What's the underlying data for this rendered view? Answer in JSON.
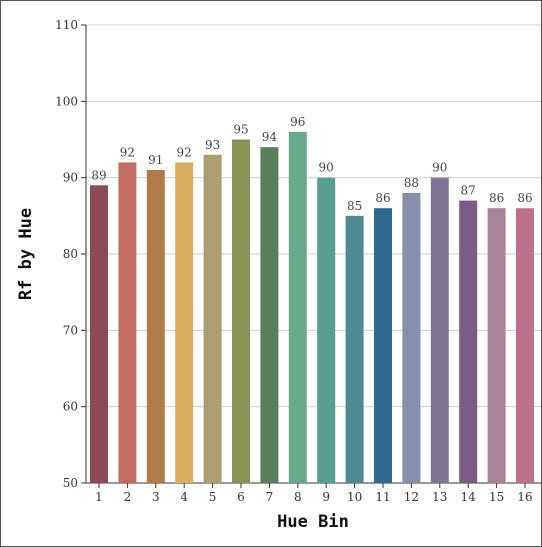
{
  "chart_data": {
    "type": "bar",
    "title": "",
    "xlabel": "Hue Bin",
    "ylabel": "Rf by Hue",
    "ylim": [
      50,
      110
    ],
    "yticks": [
      "50",
      "60",
      "70",
      "80",
      "90",
      "100",
      "110"
    ],
    "categories": [
      "1",
      "2",
      "3",
      "4",
      "5",
      "6",
      "7",
      "8",
      "9",
      "10",
      "11",
      "12",
      "13",
      "14",
      "15",
      "16"
    ],
    "values": [
      89,
      92,
      91,
      92,
      93,
      95,
      94,
      96,
      90,
      85,
      86,
      88,
      90,
      87,
      86,
      86
    ],
    "value_labels": [
      "89",
      "92",
      "91",
      "92",
      "93",
      "95",
      "94",
      "96",
      "90",
      "85",
      "86",
      "88",
      "90",
      "87",
      "86",
      "86"
    ],
    "colors": [
      "#8c4b54",
      "#c46d62",
      "#b07a4b",
      "#d9ae5e",
      "#ad9e6f",
      "#879457",
      "#5b7f5a",
      "#6aa88c",
      "#579f95",
      "#4e8a91",
      "#2e6990",
      "#8690aa",
      "#7f7794",
      "#7e5a86",
      "#a7849a",
      "#bf6f8c"
    ],
    "grid": true,
    "legend": "none"
  }
}
